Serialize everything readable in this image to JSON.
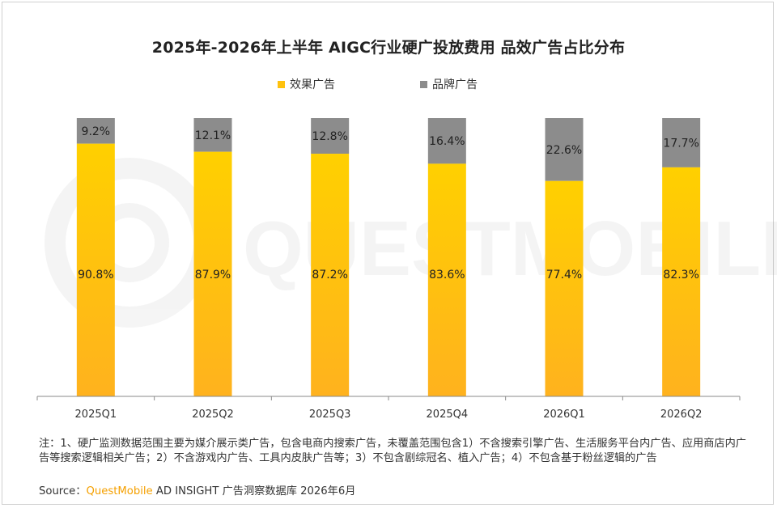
{
  "title": "2025年-2026年上半年 AIGC行业硬广投放费用 品效广告占比分布",
  "watermark": "QUESTMOBILE",
  "note": "注：1、硬广监测数据范围主要为媒介展示类广告，包含电商内搜索广告，未覆盖范围包含1）不含搜索引擎广告、生活服务平台内广告、应用商店内广告等搜索逻辑相关广告；2）不含游戏内广告、工具内皮肤广告等；3）不包含剧综冠名、植入广告；4）不包含基于粉丝逻辑的广告",
  "source": {
    "prefix": "Source：",
    "brand": "QuestMobile",
    "rest": " AD INSIGHT 广告洞察数据库 2026年6月"
  },
  "colors": {
    "effect_top": "#ffd000",
    "effect_bottom": "#ffb21e",
    "brand": "#8c8c8c",
    "source_brand": "#f5a000"
  },
  "chart_data": {
    "type": "bar",
    "stacked": true,
    "percent": true,
    "categories": [
      "2025Q1",
      "2025Q2",
      "2025Q3",
      "2025Q4",
      "2026Q1",
      "2026Q2"
    ],
    "series": [
      {
        "name": "效果广告",
        "values": [
          90.8,
          87.9,
          87.2,
          83.6,
          77.4,
          82.3
        ],
        "labels": [
          "90.8%",
          "87.9%",
          "87.2%",
          "83.6%",
          "77.4%",
          "82.3%"
        ]
      },
      {
        "name": "品牌广告",
        "values": [
          9.2,
          12.1,
          12.8,
          16.4,
          22.6,
          17.7
        ],
        "labels": [
          "9.2%",
          "12.1%",
          "12.8%",
          "16.4%",
          "22.6%",
          "17.7%"
        ]
      }
    ],
    "ylim": [
      0,
      100
    ],
    "legend": "top-center",
    "grid": false
  }
}
